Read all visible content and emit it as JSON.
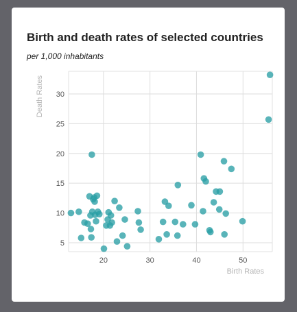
{
  "chart_data": {
    "type": "scatter",
    "title": "Birth and death rates of selected countries",
    "subtitle": "per 1,000 inhabitants",
    "xlabel": "Birth Rates",
    "ylabel": "Death Rates",
    "xlim": [
      12.5,
      56.3
    ],
    "ylim": [
      3.5,
      33.8
    ],
    "xticks": [
      20,
      30,
      40,
      50
    ],
    "yticks": [
      5,
      10,
      15,
      20,
      25,
      30
    ],
    "grid": true,
    "color": "#2a9fa5",
    "series": [
      {
        "points": [
          [
            13,
            10
          ],
          [
            14.7,
            10.2
          ],
          [
            15.2,
            5.8
          ],
          [
            15.9,
            8.4
          ],
          [
            16.6,
            8.2
          ],
          [
            17,
            12.8
          ],
          [
            17.2,
            9.6
          ],
          [
            17.3,
            7.3
          ],
          [
            17.4,
            5.9
          ],
          [
            17.5,
            19.8
          ],
          [
            17.6,
            10.2
          ],
          [
            17.8,
            12.3
          ],
          [
            18,
            12.6
          ],
          [
            18.1,
            11.9
          ],
          [
            18.2,
            9.7
          ],
          [
            18.4,
            8.6
          ],
          [
            18.6,
            12.9
          ],
          [
            18.8,
            10.2
          ],
          [
            19.1,
            9.8
          ],
          [
            20.1,
            4
          ],
          [
            20.6,
            7.9
          ],
          [
            20.9,
            8.9
          ],
          [
            21.1,
            10.1
          ],
          [
            21.4,
            7.9
          ],
          [
            21.6,
            9.6
          ],
          [
            21.8,
            8.4
          ],
          [
            22.4,
            12
          ],
          [
            22.9,
            5.2
          ],
          [
            23.4,
            10.9
          ],
          [
            24.1,
            6.2
          ],
          [
            24.6,
            8.9
          ],
          [
            25.1,
            4.4
          ],
          [
            27.4,
            10.3
          ],
          [
            27.6,
            8.4
          ],
          [
            28,
            7.2
          ],
          [
            31.9,
            5.6
          ],
          [
            32.8,
            8.5
          ],
          [
            33.2,
            11.9
          ],
          [
            33.6,
            6.4
          ],
          [
            34,
            11.2
          ],
          [
            35.4,
            8.5
          ],
          [
            35.9,
            6.2
          ],
          [
            36,
            14.7
          ],
          [
            37.1,
            8.1
          ],
          [
            38.9,
            11.3
          ],
          [
            39.7,
            8.1
          ],
          [
            40.9,
            19.8
          ],
          [
            41.4,
            10.3
          ],
          [
            41.6,
            15.8
          ],
          [
            42,
            15.3
          ],
          [
            42.8,
            7.1
          ],
          [
            43,
            6.8
          ],
          [
            43.7,
            11.8
          ],
          [
            44.2,
            13.6
          ],
          [
            44.9,
            10.6
          ],
          [
            45,
            13.6
          ],
          [
            45.9,
            18.7
          ],
          [
            46,
            6.4
          ],
          [
            46.3,
            9.9
          ],
          [
            47.5,
            17.4
          ],
          [
            49.9,
            8.6
          ],
          [
            55.5,
            25.7
          ],
          [
            55.8,
            33.2
          ]
        ]
      }
    ]
  }
}
